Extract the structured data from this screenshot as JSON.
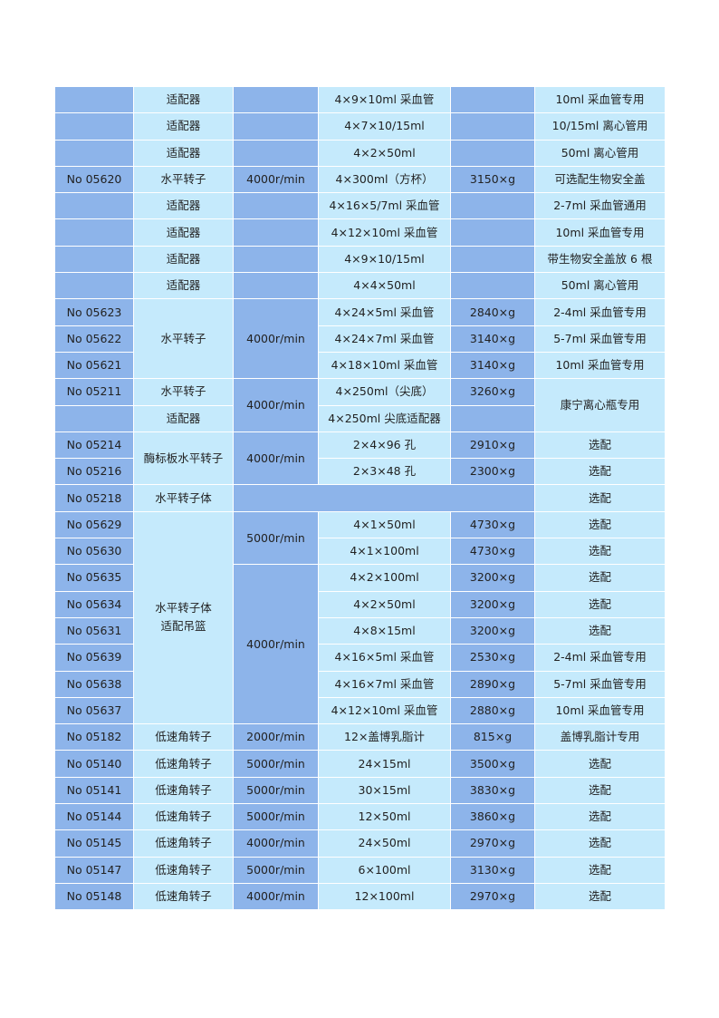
{
  "rows": [
    [
      "",
      "适配器",
      "",
      "4×9×10ml 采血管",
      "",
      "10ml 采血管专用"
    ],
    [
      "",
      "适配器",
      "",
      "4×7×10/15ml",
      "",
      "10/15ml 离心管用"
    ],
    [
      "",
      "适配器",
      "",
      "4×2×50ml",
      "",
      "50ml 离心管用"
    ],
    [
      "No 05620",
      "水平转子",
      "4000r/min",
      "4×300ml（方杯）",
      "3150×g",
      "可选配生物安全盖"
    ],
    [
      "",
      "适配器",
      "",
      "4×16×5/7ml 采血管",
      "",
      "2-7ml 采血管通用"
    ],
    [
      "",
      "适配器",
      "",
      "4×12×10ml 采血管",
      "",
      "10ml 采血管专用"
    ],
    [
      "",
      "适配器",
      "",
      "4×9×10/15ml",
      "",
      "带生物安全盖放 6 根"
    ],
    [
      "",
      "适配器",
      "",
      "4×4×50ml",
      "",
      "50ml 离心管用"
    ],
    [
      "No 05623",
      "水平转子",
      "4000r/min",
      "4×24×5ml 采血管",
      "2840×g",
      "2-4ml 采血管专用"
    ],
    [
      "No 05622",
      "",
      "",
      "4×24×7ml 采血管",
      "3140×g",
      "5-7ml 采血管专用"
    ],
    [
      "No 05621",
      "",
      "",
      "4×18×10ml 采血管",
      "3140×g",
      "10ml 采血管专用"
    ],
    [
      "No 05211",
      "水平转子",
      "4000r/min",
      "4×250ml（尖底）",
      "3260×g",
      "康宁离心瓶专用"
    ],
    [
      "",
      "适配器",
      "",
      "4×250ml 尖底适配器",
      "",
      ""
    ],
    [
      "No 05214",
      "酶标板水平转子",
      "4000r/min",
      "2×4×96 孔",
      "2910×g",
      "选配"
    ],
    [
      "No 05216",
      "",
      "",
      "2×3×48 孔",
      "2300×g",
      "选配"
    ],
    [
      "No 05218",
      "水平转子体",
      "",
      "",
      "",
      "选配"
    ],
    [
      "No 05629",
      "水平转子体\n适配吊篮",
      "5000r/min",
      "4×1×50ml",
      "4730×g",
      "选配"
    ],
    [
      "No 05630",
      "",
      "",
      "4×1×100ml",
      "4730×g",
      "选配"
    ],
    [
      "No 05635",
      "",
      "4000r/min",
      "4×2×100ml",
      "3200×g",
      "选配"
    ],
    [
      "No 05634",
      "",
      "",
      "4×2×50ml",
      "3200×g",
      "选配"
    ],
    [
      "No 05631",
      "",
      "",
      "4×8×15ml",
      "3200×g",
      "选配"
    ],
    [
      "No 05639",
      "",
      "",
      "4×16×5ml 采血管",
      "2530×g",
      "2-4ml 采血管专用"
    ],
    [
      "No 05638",
      "",
      "",
      "4×16×7ml 采血管",
      "2890×g",
      "5-7ml 采血管专用"
    ],
    [
      "No 05637",
      "",
      "",
      "4×12×10ml 采血管",
      "2880×g",
      "10ml 采血管专用"
    ],
    [
      "No 05182",
      "低速角转子",
      "2000r/min",
      "12×盖博乳脂计",
      "815×g",
      "盖博乳脂计专用"
    ],
    [
      "No 05140",
      "低速角转子",
      "5000r/min",
      "24×15ml",
      "3500×g",
      "选配"
    ],
    [
      "No 05141",
      "低速角转子",
      "5000r/min",
      "30×15ml",
      "3830×g",
      "选配"
    ],
    [
      "No 05144",
      "低速角转子",
      "5000r/min",
      "12×50ml",
      "3860×g",
      "选配"
    ],
    [
      "No 05145",
      "低速角转子",
      "4000r/min",
      "24×50ml",
      "2970×g",
      "选配"
    ],
    [
      "No 05147",
      "低速角转子",
      "5000r/min",
      "6×100ml",
      "3130×g",
      "选配"
    ],
    [
      "No 05148",
      "低速角转子",
      "4000r/min",
      "12×100ml",
      "2970×g",
      "选配"
    ]
  ]
}
